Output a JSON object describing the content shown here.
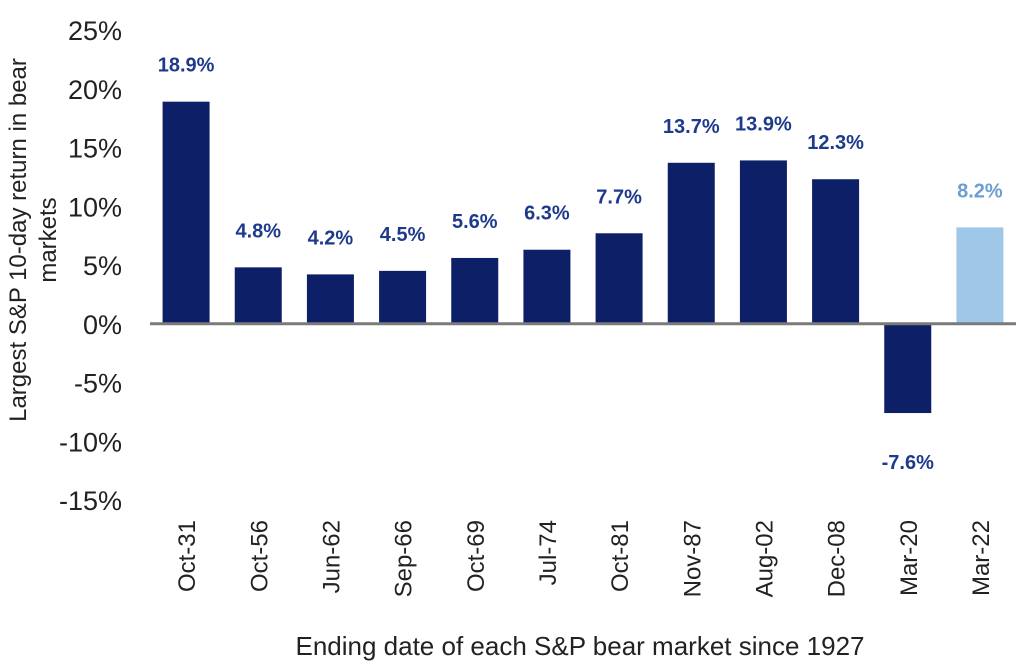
{
  "chart_data": {
    "type": "bar",
    "title": "",
    "xlabel": "Ending date of each S&P bear market since 1927",
    "ylabel": "Largest S&P 10-day return in bear markets",
    "ylim": [
      -15,
      25
    ],
    "yticks": [
      25,
      20,
      15,
      10,
      5,
      0,
      -5,
      -10,
      -15
    ],
    "ytick_labels": [
      "25%",
      "20%",
      "15%",
      "10%",
      "5%",
      "0%",
      "-5%",
      "-10%",
      "-15%"
    ],
    "grid": false,
    "legend": "none",
    "categories": [
      "Oct-31",
      "Oct-56",
      "Jun-62",
      "Sep-66",
      "Oct-69",
      "Jul-74",
      "Oct-81",
      "Nov-87",
      "Aug-02",
      "Dec-08",
      "Mar-20",
      "Mar-22"
    ],
    "values": [
      18.9,
      4.8,
      4.2,
      4.5,
      5.6,
      6.3,
      7.7,
      13.7,
      13.9,
      12.3,
      -7.6,
      8.2
    ],
    "data_labels": [
      "18.9%",
      "4.8%",
      "4.2%",
      "4.5%",
      "5.6%",
      "6.3%",
      "7.7%",
      "13.7%",
      "13.9%",
      "12.3%",
      "-7.6%",
      "8.2%"
    ],
    "bar_colors": [
      "#0d1f66",
      "#0d1f66",
      "#0d1f66",
      "#0d1f66",
      "#0d1f66",
      "#0d1f66",
      "#0d1f66",
      "#0d1f66",
      "#0d1f66",
      "#0d1f66",
      "#0d1f66",
      "#9fc8e8"
    ],
    "label_colors": [
      "#1e3a8c",
      "#1e3a8c",
      "#1e3a8c",
      "#1e3a8c",
      "#1e3a8c",
      "#1e3a8c",
      "#1e3a8c",
      "#1e3a8c",
      "#1e3a8c",
      "#1e3a8c",
      "#1e3a8c",
      "#6a9fd0"
    ],
    "axis_color": "#7a7a7a",
    "text_color": "#222222"
  }
}
